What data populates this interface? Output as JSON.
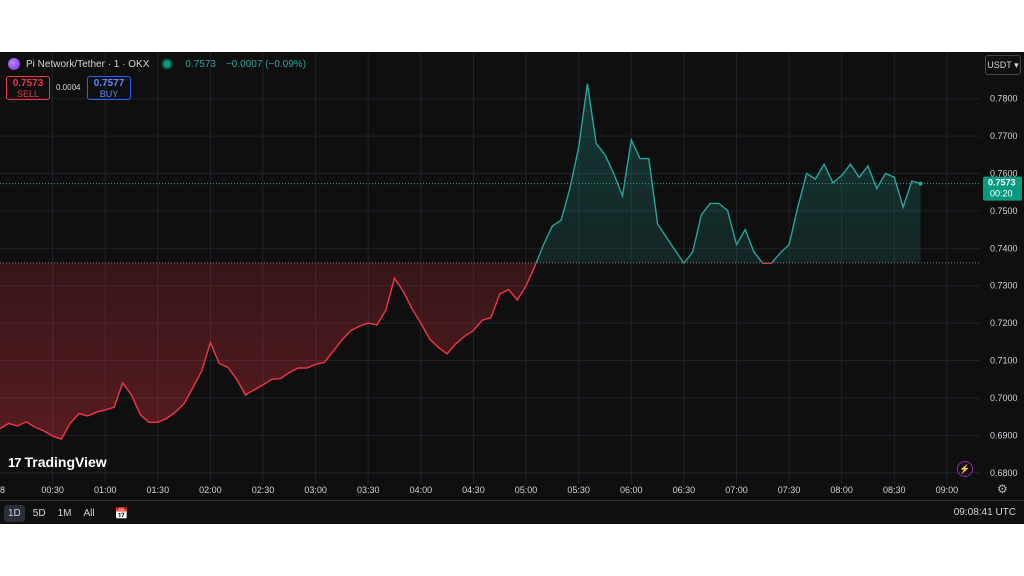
{
  "header": {
    "symbol": "Pi Network/Tether · 1 · OKX",
    "last": "0.7573",
    "change": "−0.0007 (−0.09%)"
  },
  "trade": {
    "sell_value": "0.7573",
    "sell_label": "SELL",
    "spread": "0.0004",
    "buy_value": "0.7577",
    "buy_label": "BUY"
  },
  "currency_button": "USDT",
  "brand": "TradingView",
  "price_tag": {
    "value": "0.7573",
    "countdown": "00:20"
  },
  "bottom_bar": {
    "ranges": [
      "1D",
      "5D",
      "1M",
      "All"
    ],
    "active_range": "1D",
    "clock": "09:08:41 UTC"
  },
  "colors": {
    "background": "#0f0f0f",
    "up": "#26a69a",
    "down": "#f23645",
    "grid": "#1e222d",
    "text": "#d1d4dc"
  },
  "chart_data": {
    "type": "area",
    "x_ticks": [
      "00:30",
      "01:00",
      "01:30",
      "02:00",
      "02:30",
      "03:00",
      "03:30",
      "04:00",
      "04:30",
      "05:00",
      "05:30",
      "06:00",
      "06:30",
      "07:00",
      "07:30",
      "08:00",
      "08:30",
      "09:00"
    ],
    "y_ticks": [
      "0.7800",
      "0.7700",
      "0.7600",
      "0.7500",
      "0.7400",
      "0.7300",
      "0.7200",
      "0.7100",
      "0.7000",
      "0.6900",
      "0.6800"
    ],
    "ylim": [
      0.677,
      0.785
    ],
    "baseline": 0.7361,
    "last_price": 0.7573,
    "x_start_minutes": 0,
    "series": [
      {
        "x": [
          0,
          5,
          10,
          15,
          20,
          25,
          30,
          35,
          40,
          45,
          50,
          55,
          60,
          65,
          70,
          75,
          80,
          85,
          90,
          95,
          100,
          105,
          110,
          115,
          120,
          125,
          130,
          135,
          140,
          145,
          150,
          155,
          160,
          165,
          170,
          175,
          180,
          185,
          190,
          195,
          200,
          205,
          210,
          215,
          220,
          225,
          230,
          235,
          240,
          245,
          250,
          255,
          260,
          265,
          270,
          275,
          280,
          285,
          290,
          295,
          300,
          305,
          310,
          315,
          320,
          325,
          330,
          335,
          340,
          345,
          350,
          355,
          360,
          365,
          370,
          375,
          380,
          385,
          390,
          395,
          400,
          405,
          410,
          415,
          420,
          425,
          430,
          435,
          440,
          445,
          450,
          455,
          460,
          465,
          470,
          475,
          480,
          485,
          490,
          495,
          500,
          505,
          510,
          515,
          520,
          525,
          530,
          535,
          540,
          545,
          550
        ],
        "y": [
          0.6918,
          0.6932,
          0.6925,
          0.6936,
          0.6922,
          0.6912,
          0.6898,
          0.689,
          0.6932,
          0.6958,
          0.6952,
          0.6962,
          0.6968,
          0.6975,
          0.704,
          0.7008,
          0.6955,
          0.6935,
          0.6935,
          0.6945,
          0.6962,
          0.6985,
          0.7028,
          0.7072,
          0.7148,
          0.7092,
          0.7082,
          0.705,
          0.7008,
          0.7022,
          0.7035,
          0.705,
          0.7052,
          0.7068,
          0.708,
          0.708,
          0.709,
          0.7095,
          0.7125,
          0.7155,
          0.718,
          0.7192,
          0.72,
          0.7195,
          0.7235,
          0.732,
          0.7285,
          0.7238,
          0.72,
          0.7158,
          0.7135,
          0.7118,
          0.7145,
          0.7165,
          0.718,
          0.7208,
          0.7215,
          0.7278,
          0.729,
          0.7262,
          0.73,
          0.7352,
          0.741,
          0.746,
          0.7475,
          0.756,
          0.767,
          0.784,
          0.768,
          0.765,
          0.76,
          0.754,
          0.769,
          0.764,
          0.764,
          0.7465,
          0.743,
          0.7395,
          0.736,
          0.739,
          0.749,
          0.752,
          0.752,
          0.75,
          0.741,
          0.745,
          0.739,
          0.736,
          0.736,
          0.7388,
          0.741,
          0.751,
          0.76,
          0.7585,
          0.7625,
          0.7575,
          0.7595,
          0.7625,
          0.759,
          0.762,
          0.756,
          0.76,
          0.759,
          0.751,
          0.758,
          0.7573,
          0.7573,
          0.7573,
          0.7573,
          0.7573,
          0.7573
        ]
      }
    ],
    "line_end_minutes": 525
  }
}
